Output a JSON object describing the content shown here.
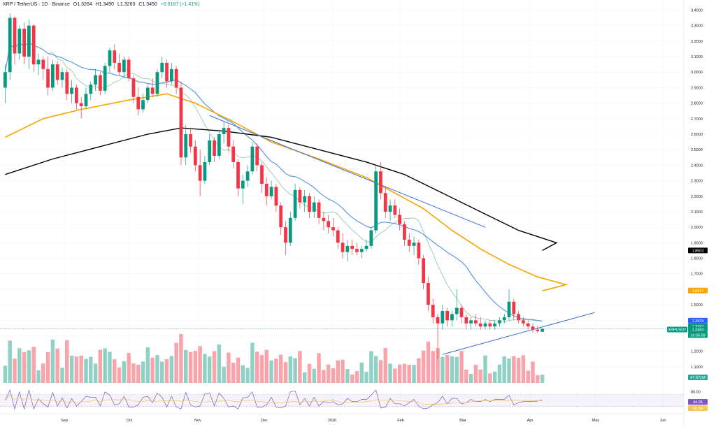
{
  "header": {
    "symbol": "XRP / TetherUS · 1D · Binance",
    "open": "O1.3264",
    "high": "H1.3490",
    "low": "L1.3260",
    "close": "C1.3450",
    "change": "+0.0187 (+1.41%)"
  },
  "chart_data": {
    "type": "candlestick",
    "title": "XRP / TetherUS · 1D · Binance",
    "y_ticks": [
      "3.4000",
      "3.3000",
      "3.2000",
      "3.1000",
      "3.0000",
      "2.9000",
      "2.8000",
      "2.7000",
      "2.6000",
      "2.5000",
      "2.4000",
      "2.3000",
      "2.2000",
      "2.1000",
      "2.0000",
      "1.9000",
      "1.8000",
      "1.7000",
      "1.6000",
      "1.5000",
      "1.4000",
      "1.3000",
      "1.2000",
      "1.1000"
    ],
    "ylim": [
      1.05,
      3.42
    ],
    "x_months": [
      "Sep",
      "Oct",
      "Nov",
      "Dec",
      "2026",
      "Feb",
      "Mar",
      "Apr",
      "May",
      "Jun"
    ],
    "price_tags": [
      {
        "label": "1.8503",
        "value": 1.8503,
        "color": "#000000"
      },
      {
        "label": "1.5917",
        "value": 1.5917,
        "color": "#f7a600"
      },
      {
        "label": "1.3929",
        "value": 1.3929,
        "color": "#2962ff"
      },
      {
        "label": "1.3697",
        "value": 1.3697,
        "color": "#089981"
      },
      {
        "label": "XRPUSDT",
        "value": 1.345,
        "color": "#089981"
      },
      {
        "label": "1.3450",
        "value": 1.345,
        "color": "#089981"
      },
      {
        "label": "16:06:58",
        "value": 1.345,
        "color": "#089981"
      }
    ],
    "volume_tag": "47.671M",
    "rsi": {
      "ticks": [
        "80.00"
      ],
      "value_tags": [
        "44.95",
        "41.56"
      ],
      "ylim": [
        20,
        90
      ]
    },
    "candles": [
      {
        "o": 2.9,
        "h": 3.05,
        "l": 2.8,
        "c": 3.0
      },
      {
        "o": 3.0,
        "h": 3.38,
        "l": 2.95,
        "c": 3.35
      },
      {
        "o": 3.35,
        "h": 3.36,
        "l": 3.05,
        "c": 3.12
      },
      {
        "o": 3.12,
        "h": 3.3,
        "l": 3.08,
        "c": 3.28
      },
      {
        "o": 3.28,
        "h": 3.32,
        "l": 3.05,
        "c": 3.1
      },
      {
        "o": 3.1,
        "h": 3.34,
        "l": 3.02,
        "c": 3.3
      },
      {
        "o": 3.3,
        "h": 3.31,
        "l": 3.0,
        "c": 3.05
      },
      {
        "o": 3.05,
        "h": 3.12,
        "l": 2.98,
        "c": 3.08
      },
      {
        "o": 3.08,
        "h": 3.1,
        "l": 2.95,
        "c": 3.02
      },
      {
        "o": 3.02,
        "h": 3.1,
        "l": 2.85,
        "c": 2.9
      },
      {
        "o": 2.9,
        "h": 3.08,
        "l": 2.88,
        "c": 3.05
      },
      {
        "o": 3.05,
        "h": 3.07,
        "l": 2.92,
        "c": 2.95
      },
      {
        "o": 2.95,
        "h": 3.03,
        "l": 2.9,
        "c": 3.0
      },
      {
        "o": 3.0,
        "h": 3.02,
        "l": 2.82,
        "c": 2.86
      },
      {
        "o": 2.86,
        "h": 2.95,
        "l": 2.8,
        "c": 2.9
      },
      {
        "o": 2.9,
        "h": 2.92,
        "l": 2.76,
        "c": 2.8
      },
      {
        "o": 2.8,
        "h": 2.84,
        "l": 2.7,
        "c": 2.78
      },
      {
        "o": 2.78,
        "h": 2.9,
        "l": 2.76,
        "c": 2.86
      },
      {
        "o": 2.86,
        "h": 2.94,
        "l": 2.82,
        "c": 2.92
      },
      {
        "o": 2.92,
        "h": 3.02,
        "l": 2.88,
        "c": 2.98
      },
      {
        "o": 2.98,
        "h": 3.0,
        "l": 2.85,
        "c": 2.88
      },
      {
        "o": 2.88,
        "h": 3.06,
        "l": 2.86,
        "c": 3.04
      },
      {
        "o": 3.04,
        "h": 3.16,
        "l": 3.0,
        "c": 3.14
      },
      {
        "o": 3.14,
        "h": 3.18,
        "l": 3.02,
        "c": 3.06
      },
      {
        "o": 3.06,
        "h": 3.12,
        "l": 2.98,
        "c": 3.0
      },
      {
        "o": 3.0,
        "h": 3.1,
        "l": 2.96,
        "c": 3.08
      },
      {
        "o": 3.08,
        "h": 3.1,
        "l": 2.94,
        "c": 2.96
      },
      {
        "o": 2.96,
        "h": 2.98,
        "l": 2.8,
        "c": 2.84
      },
      {
        "o": 2.84,
        "h": 2.9,
        "l": 2.72,
        "c": 2.76
      },
      {
        "o": 2.76,
        "h": 2.86,
        "l": 2.74,
        "c": 2.82
      },
      {
        "o": 2.82,
        "h": 2.92,
        "l": 2.8,
        "c": 2.9
      },
      {
        "o": 2.9,
        "h": 2.96,
        "l": 2.84,
        "c": 2.86
      },
      {
        "o": 2.86,
        "h": 3.02,
        "l": 2.84,
        "c": 3.0
      },
      {
        "o": 3.0,
        "h": 3.1,
        "l": 2.96,
        "c": 3.06
      },
      {
        "o": 3.06,
        "h": 3.08,
        "l": 2.9,
        "c": 2.94
      },
      {
        "o": 2.94,
        "h": 3.06,
        "l": 2.92,
        "c": 3.02
      },
      {
        "o": 3.02,
        "h": 3.04,
        "l": 2.86,
        "c": 2.9
      },
      {
        "o": 2.9,
        "h": 2.94,
        "l": 2.4,
        "c": 2.45
      },
      {
        "o": 2.45,
        "h": 2.66,
        "l": 2.4,
        "c": 2.6
      },
      {
        "o": 2.6,
        "h": 2.64,
        "l": 2.48,
        "c": 2.52
      },
      {
        "o": 2.52,
        "h": 2.56,
        "l": 2.36,
        "c": 2.4
      },
      {
        "o": 2.4,
        "h": 2.5,
        "l": 2.2,
        "c": 2.3
      },
      {
        "o": 2.3,
        "h": 2.46,
        "l": 2.28,
        "c": 2.42
      },
      {
        "o": 2.42,
        "h": 2.6,
        "l": 2.4,
        "c": 2.56
      },
      {
        "o": 2.56,
        "h": 2.58,
        "l": 2.42,
        "c": 2.46
      },
      {
        "o": 2.46,
        "h": 2.62,
        "l": 2.44,
        "c": 2.6
      },
      {
        "o": 2.6,
        "h": 2.68,
        "l": 2.54,
        "c": 2.64
      },
      {
        "o": 2.64,
        "h": 2.66,
        "l": 2.48,
        "c": 2.52
      },
      {
        "o": 2.52,
        "h": 2.56,
        "l": 2.38,
        "c": 2.42
      },
      {
        "o": 2.42,
        "h": 2.44,
        "l": 2.2,
        "c": 2.25
      },
      {
        "o": 2.25,
        "h": 2.34,
        "l": 2.15,
        "c": 2.3
      },
      {
        "o": 2.3,
        "h": 2.4,
        "l": 2.26,
        "c": 2.36
      },
      {
        "o": 2.36,
        "h": 2.55,
        "l": 2.34,
        "c": 2.52
      },
      {
        "o": 2.52,
        "h": 2.54,
        "l": 2.36,
        "c": 2.4
      },
      {
        "o": 2.4,
        "h": 2.42,
        "l": 2.22,
        "c": 2.28
      },
      {
        "o": 2.28,
        "h": 2.32,
        "l": 2.14,
        "c": 2.2
      },
      {
        "o": 2.2,
        "h": 2.3,
        "l": 2.18,
        "c": 2.26
      },
      {
        "o": 2.26,
        "h": 2.28,
        "l": 2.1,
        "c": 2.14
      },
      {
        "o": 2.14,
        "h": 2.16,
        "l": 1.95,
        "c": 2.0
      },
      {
        "o": 2.0,
        "h": 2.04,
        "l": 1.82,
        "c": 1.9
      },
      {
        "o": 1.9,
        "h": 2.1,
        "l": 1.88,
        "c": 2.06
      },
      {
        "o": 2.06,
        "h": 2.28,
        "l": 2.04,
        "c": 2.24
      },
      {
        "o": 2.24,
        "h": 2.26,
        "l": 2.12,
        "c": 2.16
      },
      {
        "o": 2.16,
        "h": 2.24,
        "l": 2.1,
        "c": 2.2
      },
      {
        "o": 2.2,
        "h": 2.22,
        "l": 2.06,
        "c": 2.1
      },
      {
        "o": 2.1,
        "h": 2.2,
        "l": 2.06,
        "c": 2.16
      },
      {
        "o": 2.16,
        "h": 2.18,
        "l": 2.02,
        "c": 2.06
      },
      {
        "o": 2.06,
        "h": 2.1,
        "l": 1.98,
        "c": 2.04
      },
      {
        "o": 2.04,
        "h": 2.08,
        "l": 1.96,
        "c": 2.0
      },
      {
        "o": 2.0,
        "h": 2.06,
        "l": 1.94,
        "c": 1.98
      },
      {
        "o": 1.98,
        "h": 2.0,
        "l": 1.86,
        "c": 1.9
      },
      {
        "o": 1.9,
        "h": 1.96,
        "l": 1.8,
        "c": 1.84
      },
      {
        "o": 1.84,
        "h": 1.92,
        "l": 1.78,
        "c": 1.88
      },
      {
        "o": 1.88,
        "h": 1.92,
        "l": 1.82,
        "c": 1.86
      },
      {
        "o": 1.86,
        "h": 1.9,
        "l": 1.82,
        "c": 1.84
      },
      {
        "o": 1.84,
        "h": 1.88,
        "l": 1.8,
        "c": 1.86
      },
      {
        "o": 1.86,
        "h": 1.92,
        "l": 1.84,
        "c": 1.88
      },
      {
        "o": 1.88,
        "h": 2.0,
        "l": 1.86,
        "c": 1.98
      },
      {
        "o": 1.98,
        "h": 2.4,
        "l": 1.96,
        "c": 2.36
      },
      {
        "o": 2.36,
        "h": 2.42,
        "l": 2.18,
        "c": 2.22
      },
      {
        "o": 2.22,
        "h": 2.26,
        "l": 2.06,
        "c": 2.1
      },
      {
        "o": 2.1,
        "h": 2.18,
        "l": 2.04,
        "c": 2.14
      },
      {
        "o": 2.14,
        "h": 2.18,
        "l": 2.06,
        "c": 2.08
      },
      {
        "o": 2.08,
        "h": 2.12,
        "l": 1.98,
        "c": 2.02
      },
      {
        "o": 2.02,
        "h": 2.04,
        "l": 1.88,
        "c": 1.92
      },
      {
        "o": 1.92,
        "h": 1.96,
        "l": 1.84,
        "c": 1.88
      },
      {
        "o": 1.88,
        "h": 1.94,
        "l": 1.82,
        "c": 1.9
      },
      {
        "o": 1.9,
        "h": 1.92,
        "l": 1.76,
        "c": 1.8
      },
      {
        "o": 1.8,
        "h": 1.82,
        "l": 1.6,
        "c": 1.64
      },
      {
        "o": 1.64,
        "h": 1.68,
        "l": 1.46,
        "c": 1.5
      },
      {
        "o": 1.5,
        "h": 1.54,
        "l": 1.38,
        "c": 1.42
      },
      {
        "o": 1.42,
        "h": 1.44,
        "l": 1.15,
        "c": 1.38
      },
      {
        "o": 1.38,
        "h": 1.5,
        "l": 1.34,
        "c": 1.46
      },
      {
        "o": 1.46,
        "h": 1.48,
        "l": 1.36,
        "c": 1.4
      },
      {
        "o": 1.4,
        "h": 1.46,
        "l": 1.36,
        "c": 1.44
      },
      {
        "o": 1.44,
        "h": 1.6,
        "l": 1.4,
        "c": 1.48
      },
      {
        "o": 1.48,
        "h": 1.5,
        "l": 1.38,
        "c": 1.42
      },
      {
        "o": 1.42,
        "h": 1.44,
        "l": 1.34,
        "c": 1.38
      },
      {
        "o": 1.38,
        "h": 1.42,
        "l": 1.34,
        "c": 1.4
      },
      {
        "o": 1.4,
        "h": 1.44,
        "l": 1.36,
        "c": 1.38
      },
      {
        "o": 1.38,
        "h": 1.42,
        "l": 1.34,
        "c": 1.36
      },
      {
        "o": 1.36,
        "h": 1.4,
        "l": 1.34,
        "c": 1.38
      },
      {
        "o": 1.38,
        "h": 1.4,
        "l": 1.34,
        "c": 1.36
      },
      {
        "o": 1.36,
        "h": 1.4,
        "l": 1.34,
        "c": 1.38
      },
      {
        "o": 1.38,
        "h": 1.42,
        "l": 1.36,
        "c": 1.4
      },
      {
        "o": 1.4,
        "h": 1.44,
        "l": 1.38,
        "c": 1.42
      },
      {
        "o": 1.42,
        "h": 1.6,
        "l": 1.4,
        "c": 1.52
      },
      {
        "o": 1.52,
        "h": 1.54,
        "l": 1.4,
        "c": 1.44
      },
      {
        "o": 1.44,
        "h": 1.46,
        "l": 1.38,
        "c": 1.4
      },
      {
        "o": 1.4,
        "h": 1.42,
        "l": 1.36,
        "c": 1.38
      },
      {
        "o": 1.38,
        "h": 1.4,
        "l": 1.34,
        "c": 1.36
      },
      {
        "o": 1.36,
        "h": 1.38,
        "l": 1.32,
        "c": 1.34
      },
      {
        "o": 1.34,
        "h": 1.36,
        "l": 1.32,
        "c": 1.33
      },
      {
        "o": 1.3264,
        "h": 1.349,
        "l": 1.326,
        "c": 1.345
      }
    ]
  }
}
